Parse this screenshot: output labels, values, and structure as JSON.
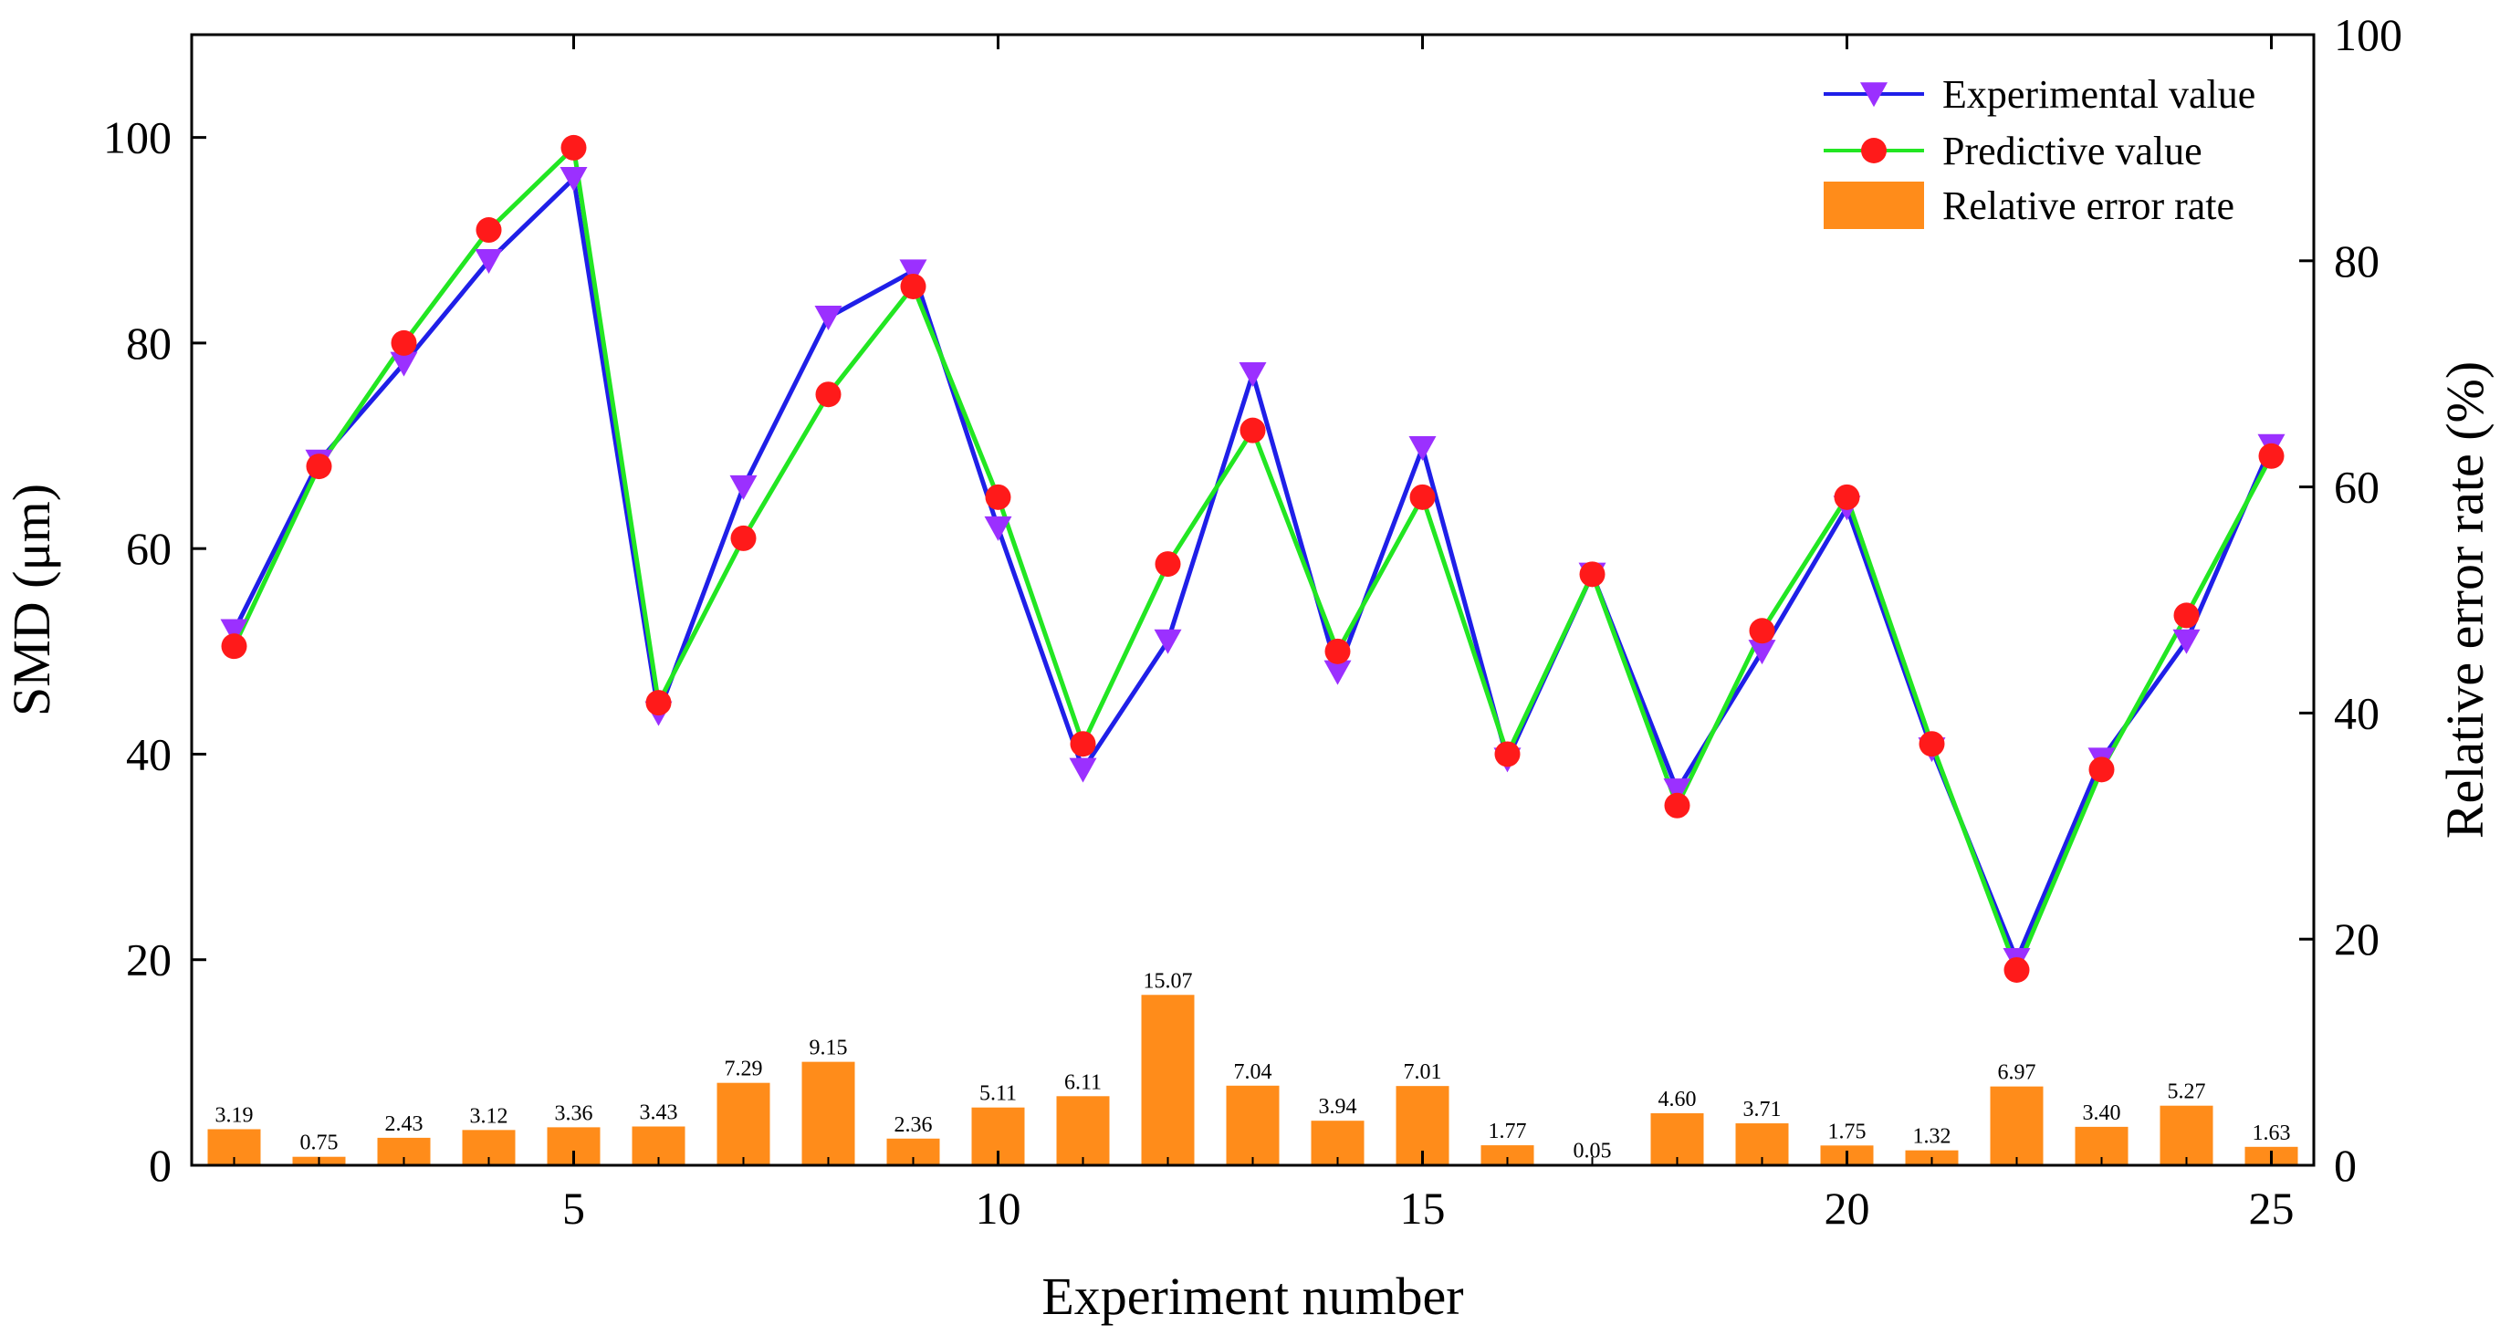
{
  "chart_data": {
    "type": "line+bar",
    "xlabel": "Experiment number",
    "ylabel_left": "SMD (μm)",
    "ylabel_right": "Relative error rate (%)",
    "x": [
      1,
      2,
      3,
      4,
      5,
      6,
      7,
      8,
      9,
      10,
      11,
      12,
      13,
      14,
      15,
      16,
      17,
      18,
      19,
      20,
      21,
      22,
      23,
      24,
      25
    ],
    "xlim": [
      0.5,
      25.5
    ],
    "x_ticks": [
      5,
      10,
      15,
      20,
      25
    ],
    "ylim_left": [
      0,
      110
    ],
    "y_ticks_left": [
      0,
      20,
      40,
      60,
      80,
      100
    ],
    "ylim_right": [
      0,
      100
    ],
    "y_ticks_right": [
      0,
      20,
      40,
      60,
      80,
      100
    ],
    "series": [
      {
        "name": "Experimental value",
        "type": "line",
        "axis": "left",
        "color": "#1f1fe8",
        "marker": "triangle-down",
        "marker_color": "#9b30ff",
        "values": [
          52,
          68.5,
          78,
          88,
          96,
          44,
          66,
          82.5,
          87,
          62,
          38.5,
          51,
          77,
          48,
          69.8,
          39.5,
          57.5,
          36.5,
          50,
          64,
          40.5,
          20,
          39.5,
          51,
          70
        ]
      },
      {
        "name": "Predictive value",
        "type": "line",
        "axis": "left",
        "color": "#22e622",
        "marker": "circle",
        "marker_color": "#ff1a1a",
        "values": [
          50.5,
          68,
          80,
          91,
          99,
          45,
          61,
          75,
          85.5,
          65,
          41,
          58.5,
          71.5,
          50,
          65,
          40,
          57.5,
          35,
          52,
          65,
          41,
          19,
          38.5,
          53.5,
          69
        ]
      },
      {
        "name": "Relative error rate",
        "type": "bar",
        "axis": "right",
        "color": "#ff8c1a",
        "values": [
          3.19,
          0.75,
          2.43,
          3.12,
          3.36,
          3.43,
          7.29,
          9.15,
          2.36,
          5.11,
          6.11,
          15.07,
          7.04,
          3.94,
          7.01,
          1.77,
          0.05,
          4.6,
          3.71,
          1.75,
          1.32,
          6.97,
          3.4,
          5.27,
          1.63
        ],
        "labels": [
          "3.19",
          "0.75",
          "2.43",
          "3.12",
          "3.36",
          "3.43",
          "7.29",
          "9.15",
          "2.36",
          "5.11",
          "6.11",
          "15.07",
          "7.04",
          "3.94",
          "7.01",
          "1.77",
          "0.05",
          "4.60",
          "3.71",
          "1.75",
          "1.32",
          "6.97",
          "3.40",
          "5.27",
          "1.63"
        ]
      }
    ],
    "legend": {
      "placement": "top-right",
      "entries": [
        "Experimental value",
        "Predictive value",
        "Relative error rate"
      ]
    }
  }
}
